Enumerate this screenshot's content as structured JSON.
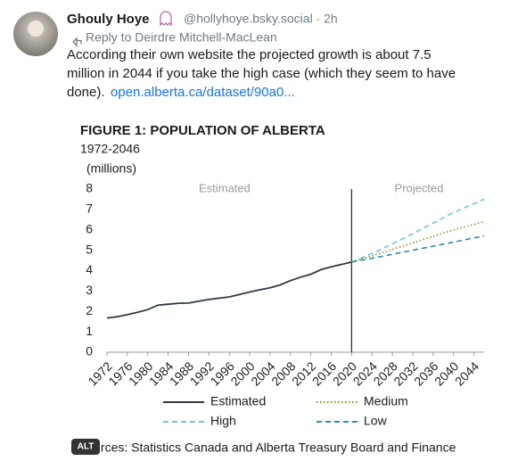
{
  "post": {
    "author": "Ghouly Hoye",
    "handle": "@hollyhoye.bsky.social · 2h",
    "reply_to": "Reply to Deirdre Mitchell-MacLean",
    "text": [
      "According their own website the projected growth is about 7.5",
      "million in 2044 if you take the high case (which they seem to have",
      "done)."
    ],
    "link": "open.alberta.ca/dataset/90a0...",
    "alt_badge": "ALT"
  },
  "chart_data": {
    "type": "line",
    "title": "FIGURE 1: POPULATION OF ALBERTA",
    "subtitle": "1972-2046",
    "y_label": "(millions)",
    "annotations": [
      "Estimated",
      "Projected"
    ],
    "divider_x": 2020,
    "source": "Sources: Statistics Canada and Alberta Treasury Board and Finance",
    "xlim": [
      1972,
      2046
    ],
    "xticks": [
      1972,
      1976,
      1980,
      1984,
      1988,
      1992,
      1996,
      2000,
      2004,
      2008,
      2012,
      2016,
      2020,
      2024,
      2028,
      2032,
      2036,
      2040,
      2044
    ],
    "ylim": [
      0,
      8
    ],
    "yticks": [
      0,
      1,
      2,
      3,
      4,
      5,
      6,
      7,
      8
    ],
    "series": [
      {
        "name": "Estimated",
        "color": "#2f3a46",
        "style": "solid",
        "x": [
          1972,
          1974,
          1976,
          1978,
          1980,
          1982,
          1984,
          1986,
          1988,
          1990,
          1992,
          1994,
          1996,
          1998,
          2000,
          2002,
          2004,
          2006,
          2008,
          2010,
          2012,
          2014,
          2016,
          2018,
          2020
        ],
        "values": [
          1.68,
          1.74,
          1.84,
          1.96,
          2.09,
          2.31,
          2.35,
          2.4,
          2.41,
          2.5,
          2.59,
          2.65,
          2.71,
          2.83,
          2.95,
          3.06,
          3.16,
          3.3,
          3.51,
          3.68,
          3.82,
          4.05,
          4.19,
          4.3,
          4.42
        ]
      },
      {
        "name": "Medium",
        "color": "#8c8a2e",
        "style": "dotted",
        "x": [
          2020,
          2025,
          2030,
          2035,
          2040,
          2046
        ],
        "values": [
          4.42,
          4.8,
          5.2,
          5.6,
          6.0,
          6.4
        ]
      },
      {
        "name": "High",
        "color": "#6ec6da",
        "style": "dashed",
        "x": [
          2020,
          2025,
          2030,
          2035,
          2040,
          2046
        ],
        "values": [
          4.42,
          4.95,
          5.55,
          6.2,
          6.85,
          7.5
        ]
      },
      {
        "name": "Low",
        "color": "#2a8fb3",
        "style": "dashed",
        "x": [
          2020,
          2025,
          2030,
          2035,
          2040,
          2046
        ],
        "values": [
          4.42,
          4.65,
          4.9,
          5.15,
          5.4,
          5.7
        ]
      }
    ]
  }
}
